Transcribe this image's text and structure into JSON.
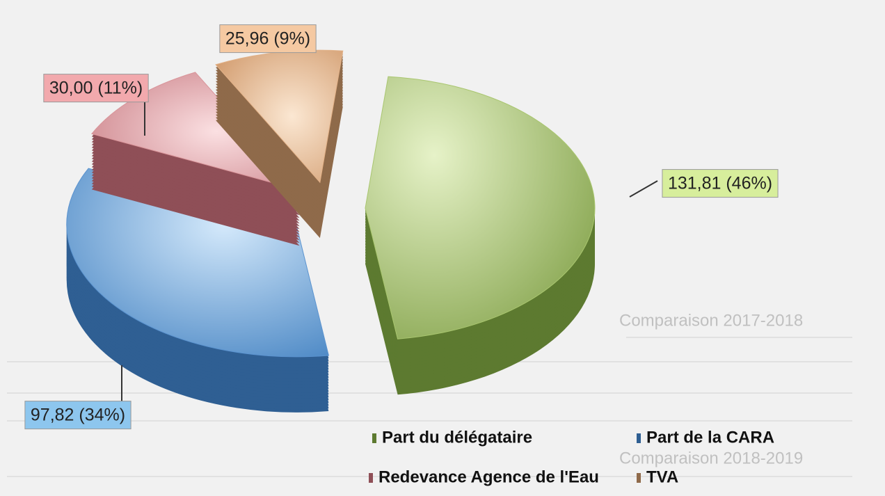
{
  "chart_data": {
    "type": "pie",
    "categories": [
      "Part du délégataire",
      "Part de la CARA",
      "Redevance Agence de l'Eau",
      "TVA"
    ],
    "values": [
      131.81,
      97.82,
      30.0,
      25.96
    ],
    "value_labels": [
      "131,81 (46%)",
      "97,82 (34%)",
      "30,00 (11%)",
      "25,96 (9%)"
    ],
    "colors": [
      "#a9c66f",
      "#5b93cf",
      "#d9959a",
      "#e2b187"
    ],
    "legend": "bottom"
  },
  "background": {
    "headings": [
      "Comparaison 2017-2018",
      "Comparaison 2018-2019"
    ]
  }
}
